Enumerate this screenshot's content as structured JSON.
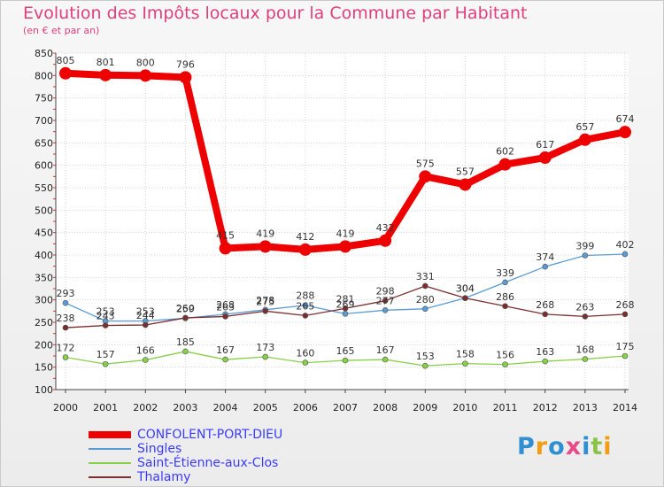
{
  "chart_data": {
    "type": "line",
    "title": "Evolution des Impôts locaux pour la Commune par Habitant",
    "subtitle": "(en € et par an)",
    "x": [
      "2000",
      "2001",
      "2002",
      "2003",
      "2004",
      "2005",
      "2006",
      "2007",
      "2008",
      "2009",
      "2010",
      "2011",
      "2012",
      "2013",
      "2014"
    ],
    "ylim": [
      100,
      850
    ],
    "yticks": [
      100,
      150,
      200,
      250,
      300,
      350,
      400,
      450,
      500,
      550,
      600,
      650,
      700,
      750,
      800,
      850
    ],
    "grid": true,
    "series": [
      {
        "name": "CONFOLENT-PORT-DIEU",
        "color": "#ee0000",
        "values": [
          805,
          801,
          800,
          796,
          415,
          419,
          412,
          419,
          432,
          575,
          557,
          602,
          617,
          657,
          674
        ]
      },
      {
        "name": "Singles",
        "color": "#5b9bd5",
        "values": [
          293,
          253,
          253,
          259,
          268,
          278,
          288,
          269,
          277,
          280,
          304,
          339,
          374,
          399,
          402
        ]
      },
      {
        "name": "Saint-Étienne-aux-Clos",
        "color": "#88d048",
        "values": [
          172,
          157,
          166,
          185,
          167,
          173,
          160,
          165,
          167,
          153,
          158,
          156,
          163,
          168,
          175
        ]
      },
      {
        "name": "Thalamy",
        "color": "#7a2e2e",
        "values": [
          238,
          243,
          244,
          260,
          263,
          275,
          265,
          281,
          298,
          331,
          304,
          286,
          268,
          263,
          268
        ]
      }
    ],
    "legend_position": "bottom-left"
  },
  "logo": {
    "letters": [
      "P",
      "r",
      "o",
      "x",
      "i",
      "t",
      "i"
    ],
    "colors": [
      "#2f8fd0",
      "#f39c12",
      "#2f8fd0",
      "#e84a8a",
      "#2f8fd0",
      "#8bc34a",
      "#f39c12"
    ]
  }
}
